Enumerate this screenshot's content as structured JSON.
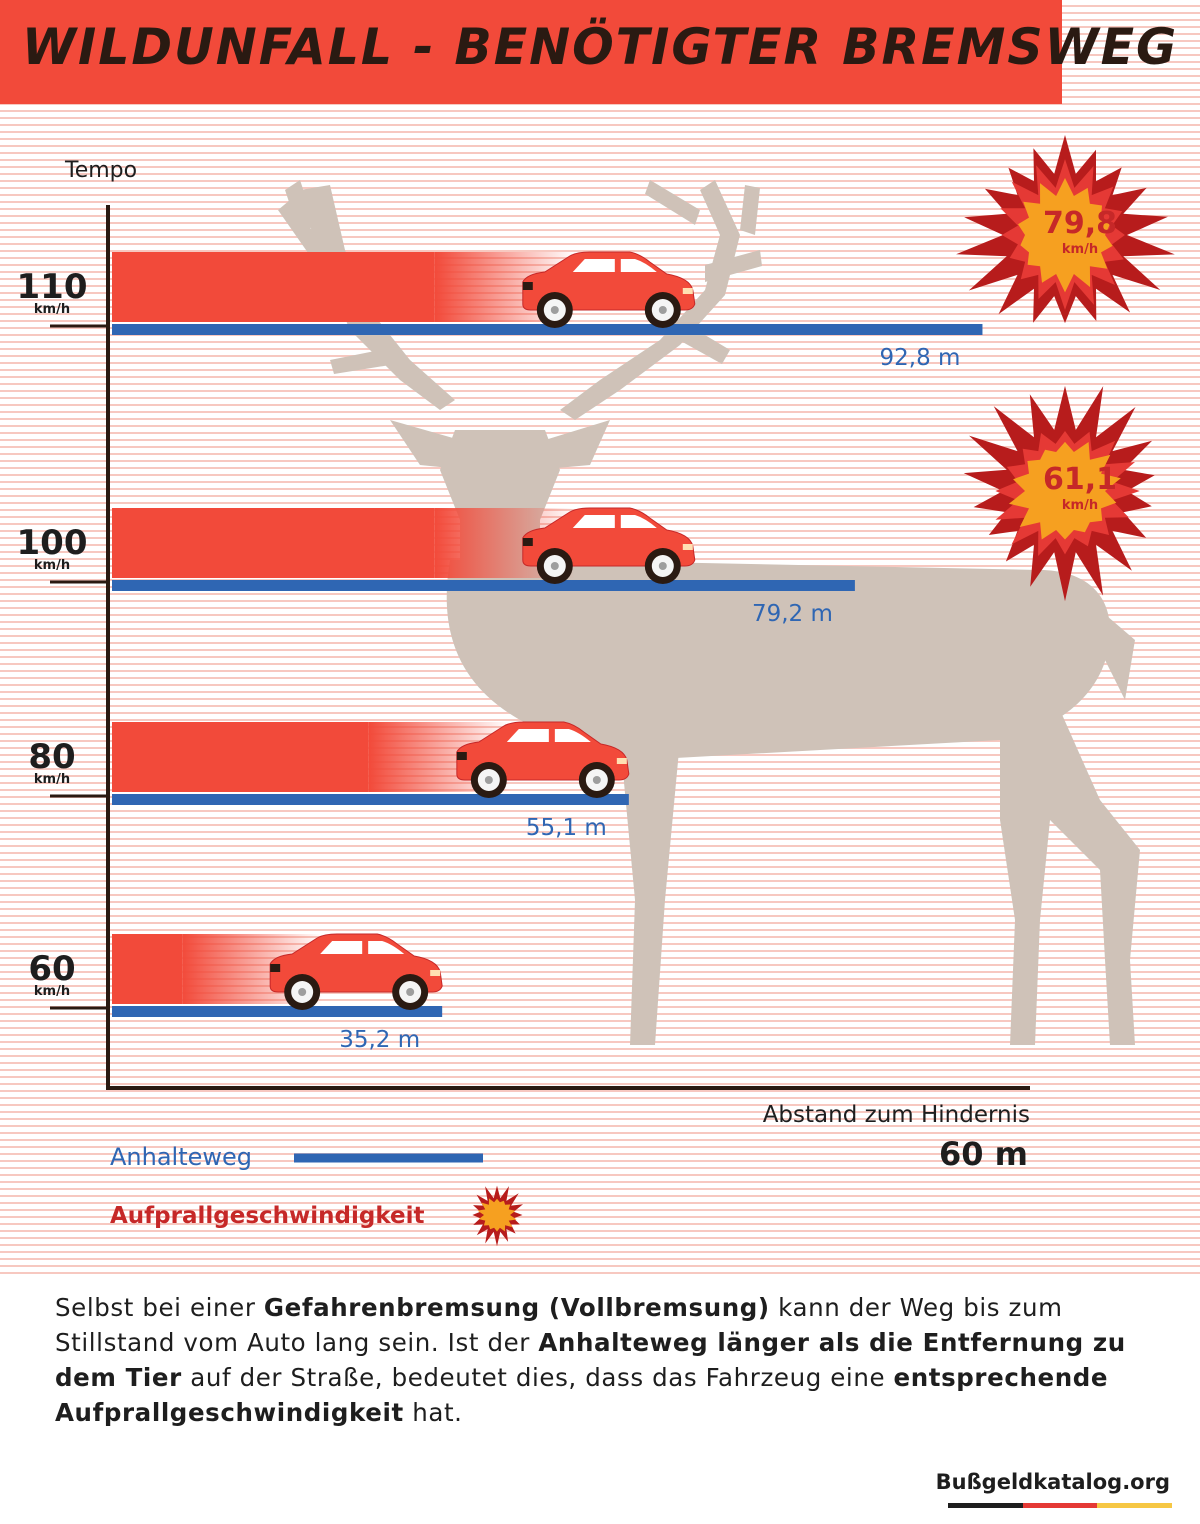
{
  "title": "WILDUNFALL - BENÖTIGTER BREMSWEG",
  "colors": {
    "bar_red": "#f24a3a",
    "line_blue": "#2f66b3",
    "deer": "#cfc2b8",
    "impact_dark": "#b71c1c",
    "impact_orange": "#f6a020",
    "label_red": "#c62828"
  },
  "chart_data": {
    "type": "bar",
    "y_axis_label": "Tempo",
    "x_axis_label": "Abstand zum Hindernis",
    "obstacle_distance_label": "60 m",
    "obstacle_distance_m": 60,
    "categories": [
      "110",
      "100",
      "80",
      "60"
    ],
    "unit_label": "km/h",
    "speed_kmh": [
      110,
      100,
      80,
      60
    ],
    "stopping_distance_m": [
      92.8,
      79.2,
      55.1,
      35.2
    ],
    "stopping_distance_labels": [
      "92,8 m",
      "79,2 m",
      "55,1 m",
      "35,2 m"
    ],
    "impact_speed_kmh": [
      79.8,
      61.1,
      null,
      null
    ],
    "impact_speed_labels": [
      "79,8",
      "61,1",
      "",
      ""
    ],
    "impact_unit": "km/h",
    "legend": {
      "stopping_distance": "Anhalteweg",
      "impact_speed": "Aufprallgeschwindigkeit"
    }
  },
  "caption": {
    "p1": "Selbst bei einer ",
    "b1": "Gefahrenbremsung (Vollbremsung)",
    "p2": " kann der Weg bis zum Stillstand vom Auto lang sein. Ist der ",
    "b2": "Anhalteweg länger als die Entfernung zu dem Tier",
    "p3": " auf der Straße, bedeutet dies, dass das Fahr­zeug eine ",
    "b3": "entsprechende Aufprallgeschwindigkeit",
    "p4": " hat."
  },
  "source": "Bußgeldkatalog.org"
}
